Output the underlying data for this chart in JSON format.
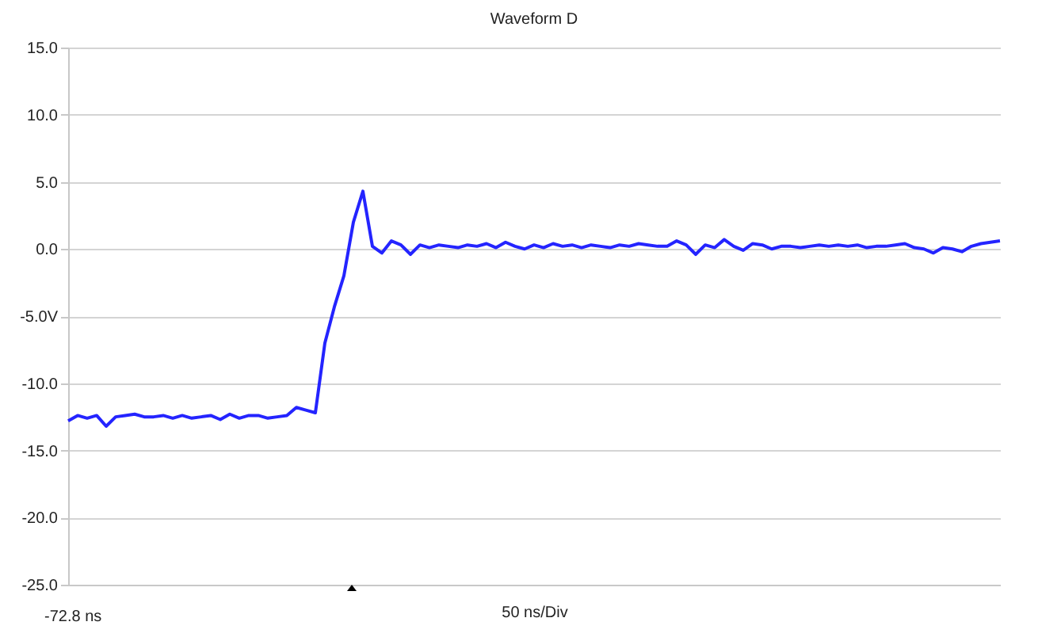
{
  "chart_data": {
    "type": "line",
    "title": "Waveform D",
    "xlabel": "50 ns/Div",
    "annotations": [
      "-72.8 ns"
    ],
    "categories": [
      null,
      null,
      null,
      null,
      null,
      null,
      null,
      null,
      null,
      null,
      null,
      null,
      null,
      null,
      null,
      null,
      null,
      null,
      null,
      null,
      null,
      null,
      null,
      null,
      null,
      null,
      null,
      null,
      null,
      null,
      null,
      null,
      null,
      null,
      null,
      null,
      null,
      null,
      null,
      null,
      null,
      null,
      null,
      null,
      null,
      null,
      null,
      null,
      null,
      null,
      null,
      null,
      null,
      null,
      null,
      null,
      null,
      null,
      null,
      null,
      null,
      null,
      null,
      null,
      null,
      null,
      null,
      null,
      null,
      null,
      null,
      null,
      null,
      null,
      null,
      null,
      null,
      null,
      null,
      null,
      null,
      null,
      null,
      null,
      null,
      null,
      null,
      null,
      null,
      null,
      null,
      null,
      null,
      null,
      null,
      null,
      null,
      null,
      null
    ],
    "series": [
      {
        "color": "#2424ff",
        "values": [
          -12.8,
          -12.4,
          -12.6,
          -12.4,
          -13.2,
          -12.5,
          -12.4,
          -12.3,
          -12.5,
          -12.5,
          -12.4,
          -12.6,
          -12.4,
          -12.6,
          -12.5,
          -12.4,
          -12.7,
          -12.3,
          -12.6,
          -12.4,
          -12.4,
          -12.6,
          -12.5,
          -12.4,
          -11.8,
          -12.0,
          -12.2,
          -7.0,
          -4.3,
          -2.0,
          2.0,
          4.3,
          0.2,
          -0.3,
          0.6,
          0.3,
          -0.4,
          0.3,
          0.1,
          0.3,
          0.2,
          0.1,
          0.3,
          0.2,
          0.4,
          0.1,
          0.5,
          0.2,
          0.0,
          0.3,
          0.1,
          0.4,
          0.2,
          0.3,
          0.1,
          0.3,
          0.2,
          0.1,
          0.3,
          0.2,
          0.4,
          0.3,
          0.2,
          0.2,
          0.6,
          0.3,
          -0.4,
          0.3,
          0.1,
          0.7,
          0.2,
          -0.1,
          0.4,
          0.3,
          0.0,
          0.2,
          0.2,
          0.1,
          0.2,
          0.3,
          0.2,
          0.3,
          0.2,
          0.3,
          0.1,
          0.2,
          0.2,
          0.3,
          0.4,
          0.1,
          0.0,
          -0.3,
          0.1,
          0.0,
          -0.2,
          0.2,
          0.4,
          0.5,
          0.6
        ]
      }
    ],
    "ylim": [
      -25,
      15
    ],
    "yticks": [
      {
        "value": 15,
        "label": "15.0"
      },
      {
        "value": 10,
        "label": "10.0"
      },
      {
        "value": 5,
        "label": "5.0"
      },
      {
        "value": 0,
        "label": "0.0"
      },
      {
        "value": -5,
        "label": "-5.0V"
      },
      {
        "value": -10,
        "label": "-10.0"
      },
      {
        "value": -15,
        "label": "-15.0"
      },
      {
        "value": -20,
        "label": "-20.0"
      },
      {
        "value": -25,
        "label": "-25.0"
      }
    ],
    "grid": "y",
    "line_style": "solid",
    "marker": "none"
  }
}
